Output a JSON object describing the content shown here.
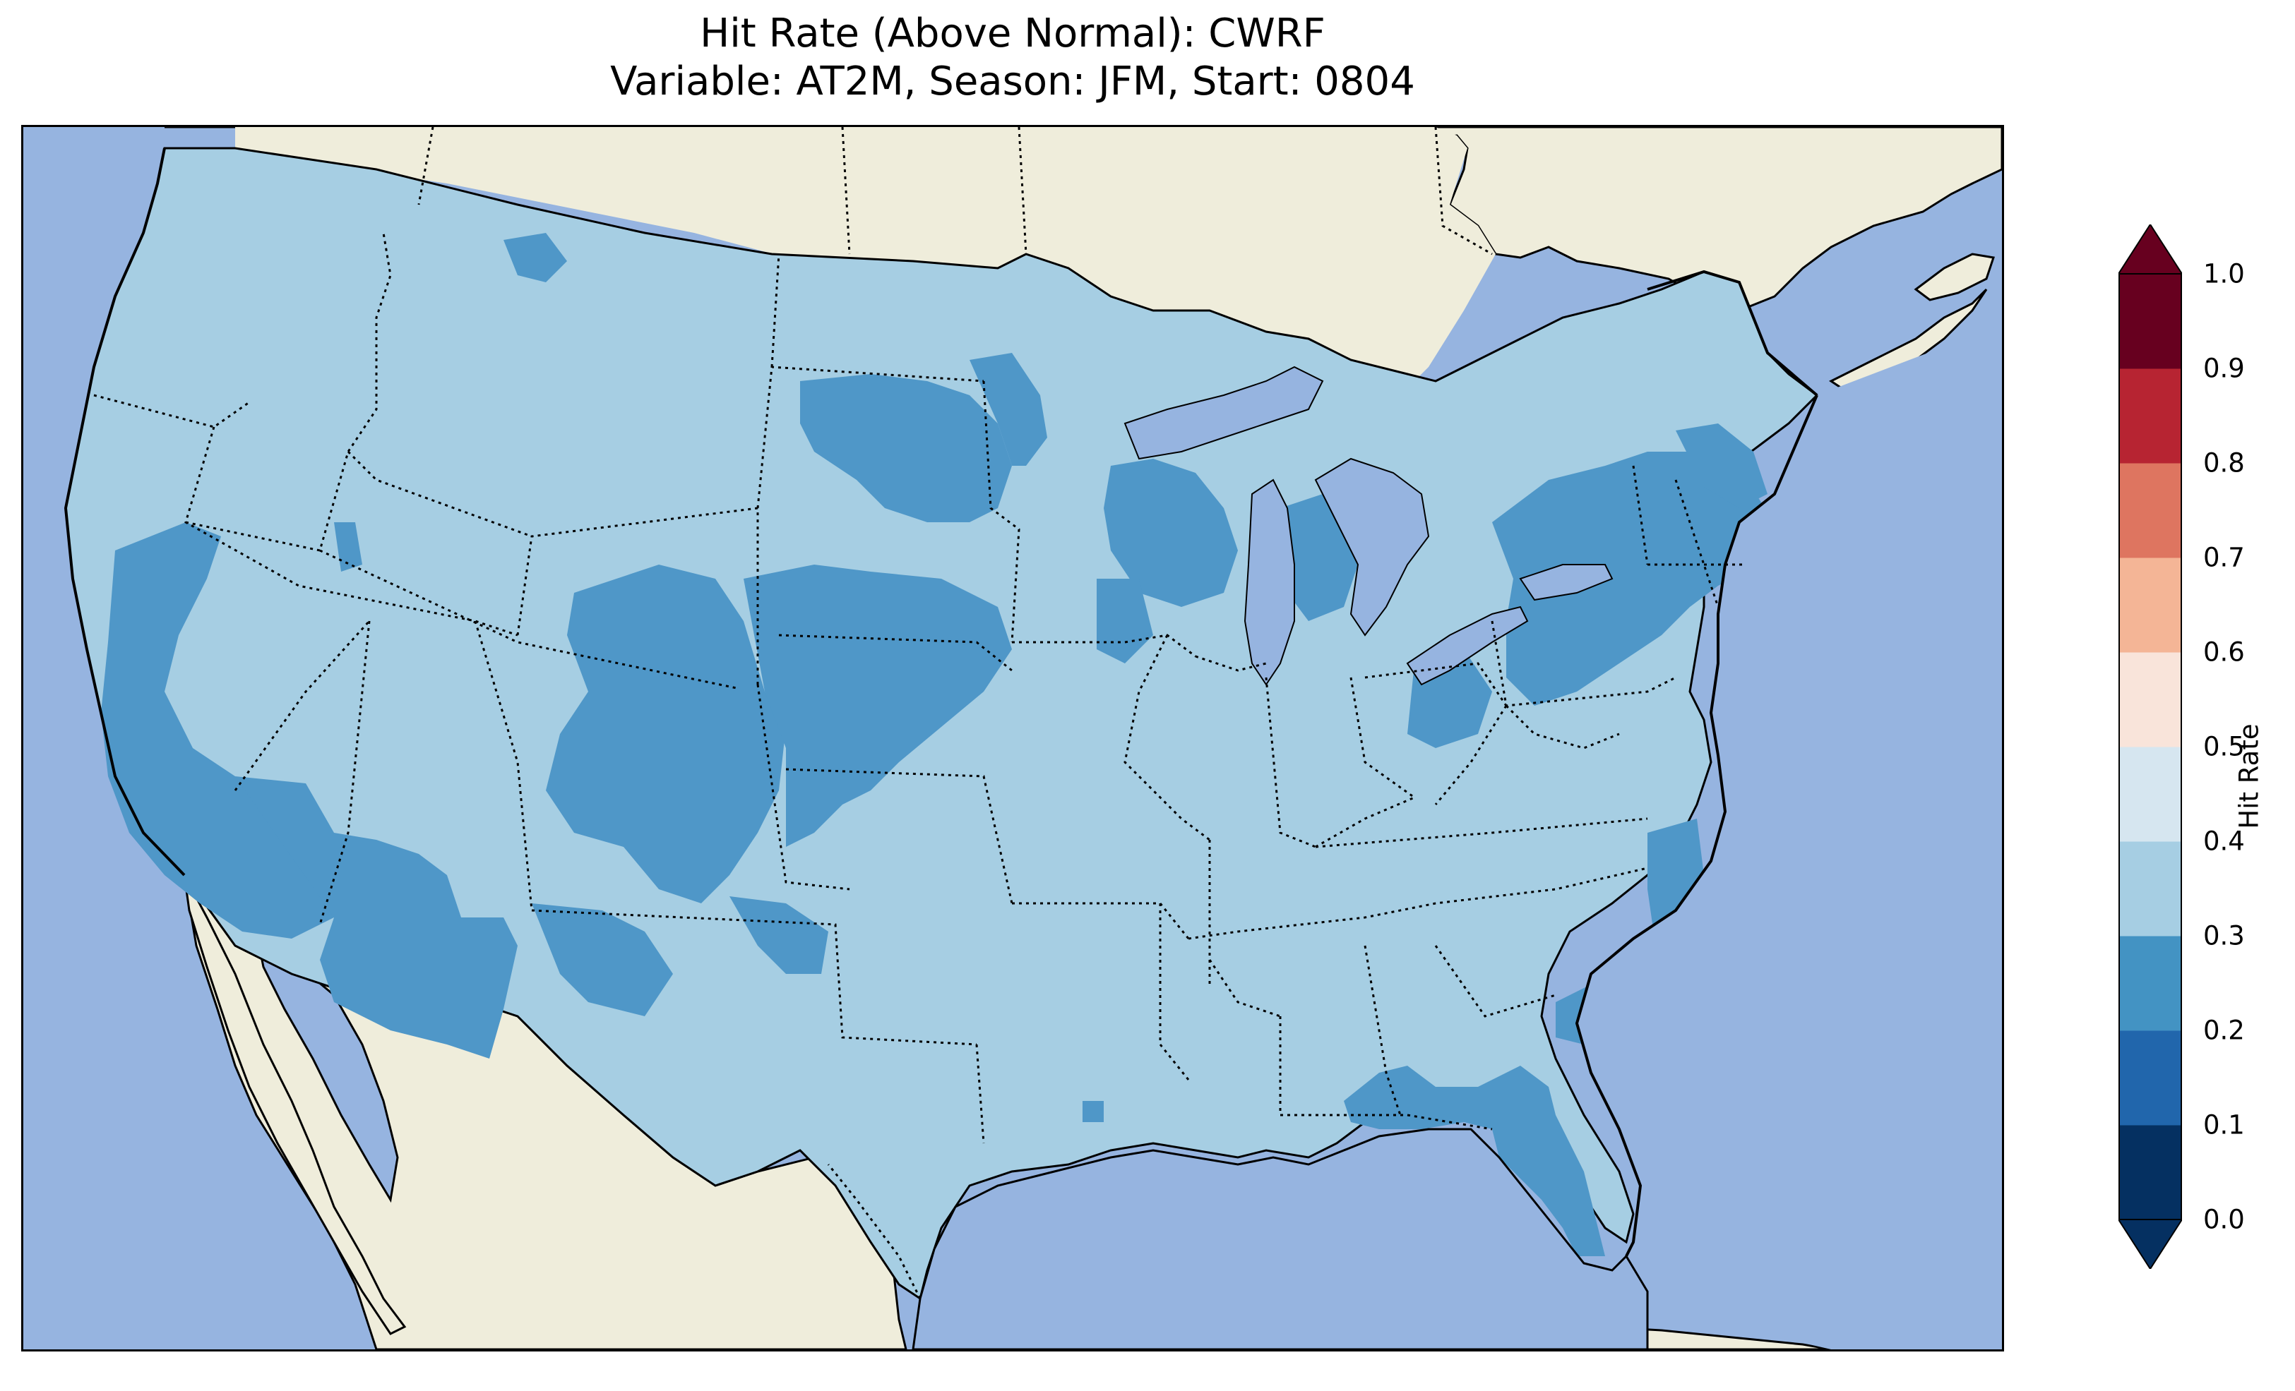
{
  "title": {
    "line1": "Hit Rate (Above Normal): CWRF",
    "line2": "Variable: AT2M, Season: JFM, Start: 0804"
  },
  "colors": {
    "ocean": "#96b4e0",
    "land_outside": "#efeddb",
    "lakes": "#96b4e0",
    "bin_0_1": "#053061",
    "bin_1_2": "#2166ac",
    "bin_2_3": "#4393c3",
    "bin_3_4": "#92c5de",
    "bin_4_5": "#d1e5f0",
    "bin_5_6": "#fddbc7",
    "bin_6_7": "#f4a582",
    "bin_7_8": "#d6604d",
    "bin_8_9": "#b2182b",
    "bin_9_10": "#67001f"
  },
  "map": {
    "variable": "AT2M",
    "season": "JFM",
    "start": "0804",
    "model": "CWRF",
    "metric": "Hit Rate (Above Normal)",
    "dominant_bin": "0.3-0.4",
    "secondary_bin": "0.2-0.3"
  },
  "colorbar": {
    "label": "Hit Rate",
    "ticks": [
      "0.0",
      "0.1",
      "0.2",
      "0.3",
      "0.4",
      "0.5",
      "0.6",
      "0.7",
      "0.8",
      "0.9",
      "1.0"
    ],
    "extend": "both",
    "colors": [
      "#053061",
      "#2166ac",
      "#4393c3",
      "#a6cee3",
      "#d6e6f0",
      "#f9e4da",
      "#f4b596",
      "#de7560",
      "#b72432",
      "#67001f"
    ]
  }
}
